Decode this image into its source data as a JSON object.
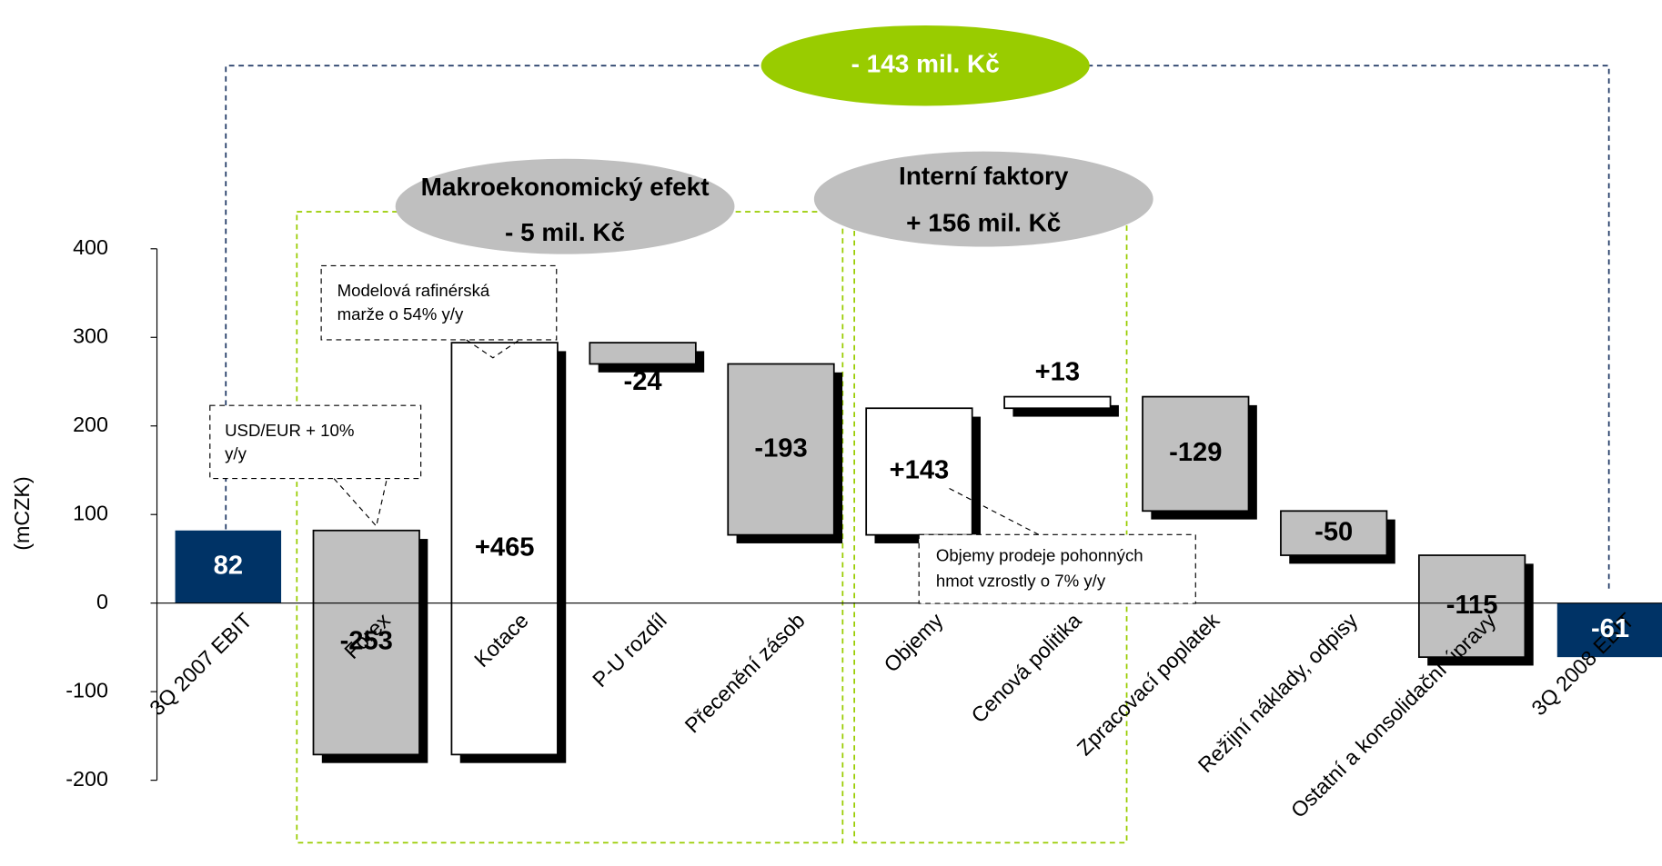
{
  "chart_data": {
    "type": "waterfall",
    "y_label": "(mCZK)",
    "categories": [
      "3Q 2007 EBIT",
      "Forex",
      "Kotace",
      "P-U rozdíl",
      "Přecenění zásob",
      "Objemy",
      "Cenová politika",
      "Zpracovací poplatek",
      "Režijní náklady, odpisy",
      "Ostatní a konsolidační úpravy",
      "3Q 2008 EBIT"
    ],
    "values": [
      82,
      -253,
      465,
      -24,
      -193,
      143,
      13,
      -129,
      -50,
      -115,
      -61
    ],
    "value_labels": [
      "82",
      "-253",
      "+465",
      "-24",
      "-193",
      "+143",
      "+13",
      "-129",
      "-50",
      "-115",
      "-61"
    ],
    "total_color": "#003366",
    "decrease_color": "#c0c0c0",
    "increase_color": "#ffffff",
    "ylim": [
      -200,
      400
    ],
    "yticks": [
      -200,
      -100,
      0,
      100,
      200,
      300,
      400
    ],
    "annotations": {
      "total_change": "-  143 mil. Kč",
      "macro": {
        "title": "Makroekonomický efekt",
        "value": "- 5 mil. Kč"
      },
      "internal": {
        "title": "Interní faktory",
        "value": "+ 156 mil. Kč"
      },
      "callouts": [
        {
          "lines": [
            "USD/EUR + 10%",
            "y/y"
          ]
        },
        {
          "lines": [
            "Modelová rafinérská",
            "marže o 54% y/y"
          ]
        },
        {
          "lines": [
            "Objemy prodeje pohonných",
            "hmot vzrostly o  7% y/y"
          ]
        }
      ]
    }
  }
}
